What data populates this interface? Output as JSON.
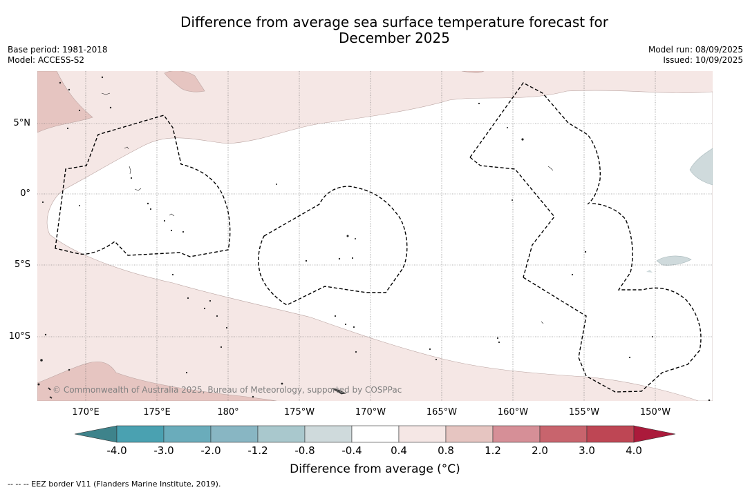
{
  "title": {
    "line1": "Difference from average sea surface temperature forecast for",
    "line2": "December 2025"
  },
  "meta": {
    "base_period": "Base period: 1981-2018",
    "model": "Model: ACCESS-S2",
    "model_run": "Model run: 08/09/2025",
    "issued": "Issued: 10/09/2025"
  },
  "map": {
    "lat_labels": [
      "5°N",
      "0°",
      "5°S",
      "10°S"
    ],
    "lon_labels": [
      "170°E",
      "175°E",
      "180°",
      "175°W",
      "170°W",
      "165°W",
      "160°W",
      "155°W",
      "150°W"
    ],
    "copyright": "© Commonwealth of Australia 2025, Bureau of Meteorology, supported by COSPPac",
    "colors": {
      "ocean_neutral": "#ffffff",
      "warm_0_4_0_8": "#f5e7e5",
      "warm_0_8_1_2": "#e6c5c1",
      "cool_neg_0_8_neg_0_4": "#cfdadc",
      "grid": "#666666",
      "eez": "#000000"
    }
  },
  "colorbar": {
    "ticks": [
      "-4.0",
      "-3.0",
      "-2.0",
      "-1.2",
      "-0.8",
      "-0.4",
      "0.4",
      "0.8",
      "1.2",
      "2.0",
      "3.0",
      "4.0"
    ],
    "colors": [
      "#3e838b",
      "#4aa1b1",
      "#6aacbb",
      "#88b6c3",
      "#a9c8cd",
      "#cfdadc",
      "#ffffff",
      "#f5e7e5",
      "#e6c5c1",
      "#d68f97",
      "#c8646d",
      "#be4654",
      "#ab1a3b"
    ],
    "title": "Difference from average (°C)"
  },
  "legend_note": "--  --  -- EEZ border V11 (Flanders Marine Institute, 2019)."
}
